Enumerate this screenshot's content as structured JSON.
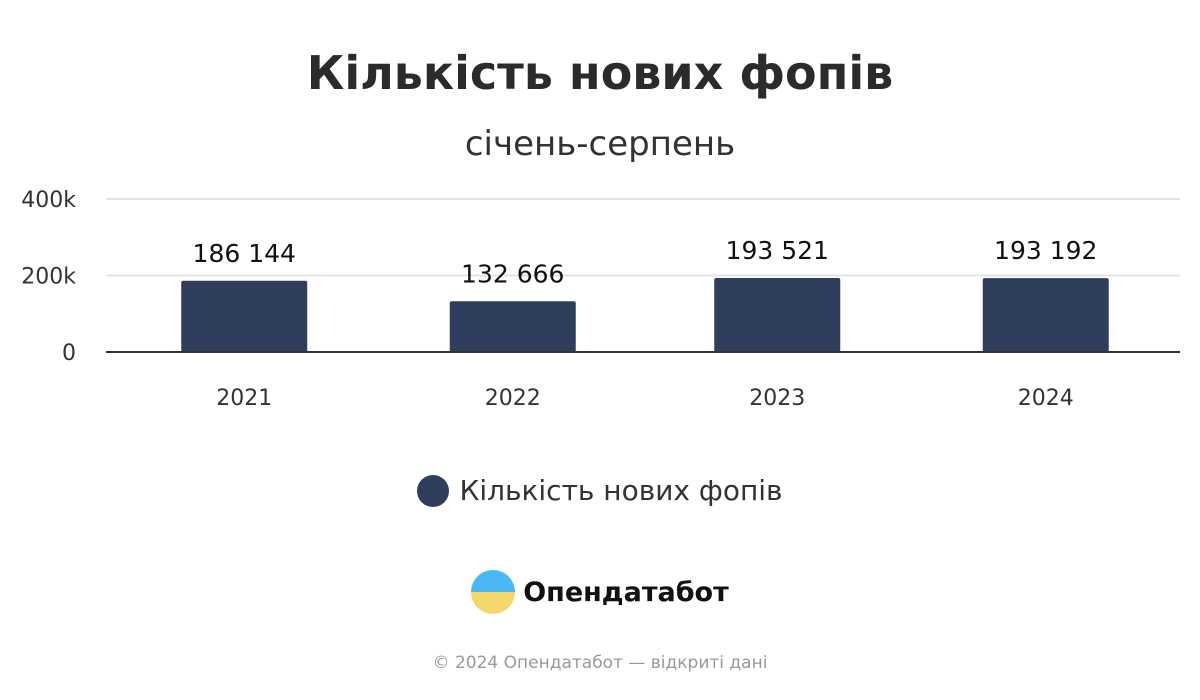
{
  "chart_data": {
    "type": "bar",
    "title": "Кількість нових фопів",
    "subtitle": "січень-серпень",
    "categories": [
      "2021",
      "2022",
      "2023",
      "2024"
    ],
    "series": [
      {
        "name": "Кількість нових фопів",
        "values": [
          186144,
          132666,
          193521,
          193192
        ],
        "labels": [
          "186 144",
          "132 666",
          "193 521",
          "193 192"
        ],
        "color": "#2e3e5c"
      }
    ],
    "yticks": [
      {
        "value": 0,
        "label": "0"
      },
      {
        "value": 200000,
        "label": "200k"
      },
      {
        "value": 400000,
        "label": "400k"
      }
    ],
    "ylim": [
      0,
      400000
    ],
    "grid": true,
    "legend": "bottom"
  },
  "brand": {
    "name": "Опендатабот"
  },
  "footer": {
    "copyright": "© 2024 Опендатабот — відкриті дані"
  }
}
